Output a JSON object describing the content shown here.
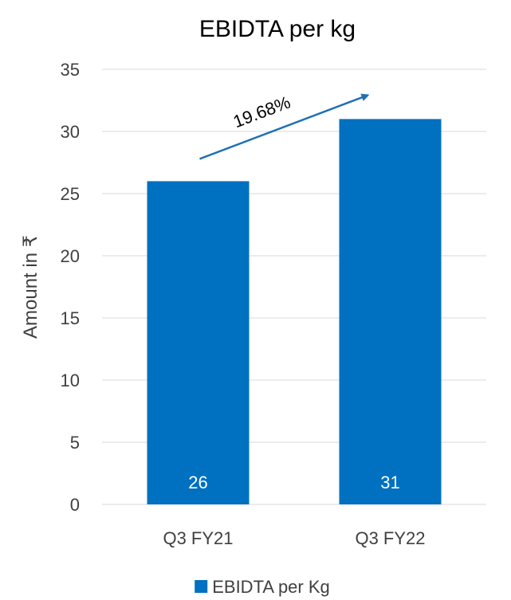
{
  "chart_data": {
    "type": "bar",
    "title": "EBIDTA per kg",
    "ylabel": "Amount in ₹",
    "xlabel": "",
    "categories": [
      "Q3 FY21",
      "Q3 FY22"
    ],
    "series": [
      {
        "name": "EBIDTA per Kg",
        "values": [
          26,
          31
        ],
        "color": "#0070C0"
      }
    ],
    "data_labels": [
      "26",
      "31"
    ],
    "ylim": [
      0,
      35
    ],
    "yticks": [
      0,
      5,
      10,
      15,
      20,
      25,
      30,
      35
    ],
    "grid": true,
    "legend_position": "bottom",
    "annotation": {
      "text": "19.68%",
      "type": "arrow",
      "from_category": "Q3 FY21",
      "to_category": "Q3 FY22",
      "color": "#1F6FB5"
    }
  }
}
